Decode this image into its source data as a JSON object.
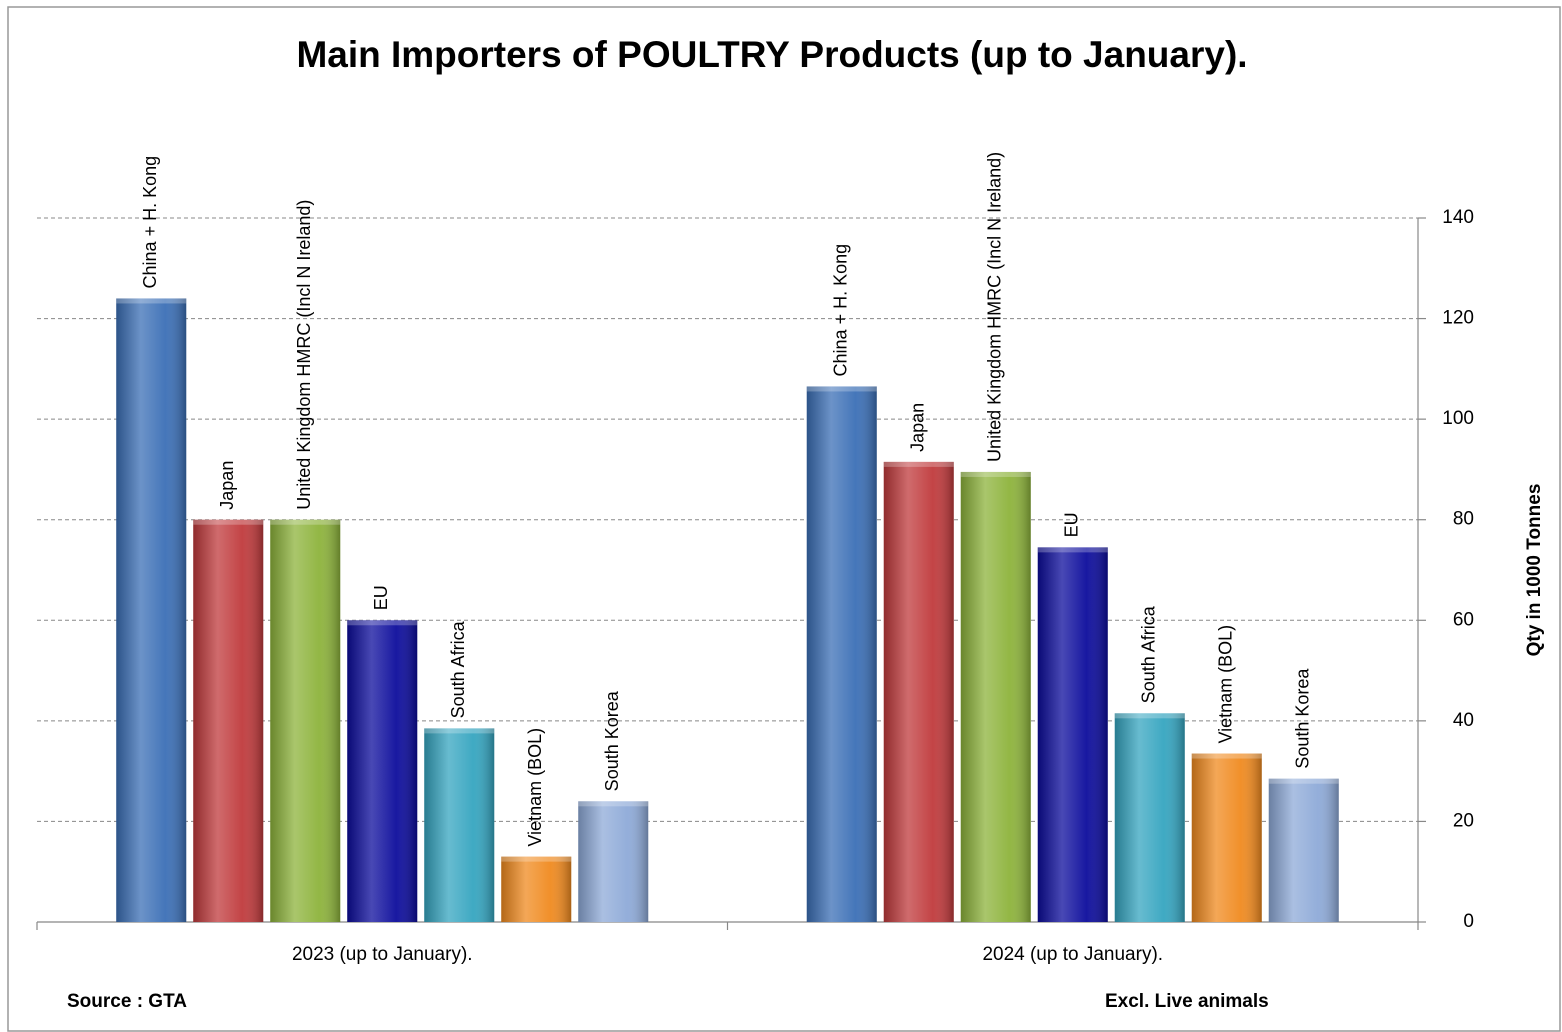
{
  "chart_data": {
    "type": "bar",
    "title": "Main Importers of POULTRY Products (up to January).",
    "categories": [
      "2023 (up to January).",
      "2024 (up to January)."
    ],
    "series": [
      {
        "name": "China + H. Kong",
        "color": "#3b6fb6",
        "values": [
          124,
          106.5
        ]
      },
      {
        "name": "Japan",
        "color": "#c03a3c",
        "values": [
          80,
          91.5
        ]
      },
      {
        "name": "United Kingdom HMRC (Incl N Ireland)",
        "color": "#8db33b",
        "values": [
          80,
          89.5
        ]
      },
      {
        "name": "EU",
        "color": "#0c0c9c",
        "values": [
          60,
          74.5
        ]
      },
      {
        "name": "South Africa",
        "color": "#35a5c0",
        "values": [
          38.5,
          41.5
        ]
      },
      {
        "name": "Vietnam (BOL)",
        "color": "#f08a1f",
        "values": [
          13,
          33.5
        ]
      },
      {
        "name": "South Korea",
        "color": "#8eaad8",
        "values": [
          24,
          28.5
        ]
      }
    ],
    "ylabel": "Qty in 1000 Tonnes",
    "ylim": [
      0,
      140
    ],
    "yticks": [
      0,
      20,
      40,
      60,
      80,
      100,
      120,
      140
    ],
    "grid": true,
    "annotations": [
      "Source : GTA",
      "Excl. Live animals"
    ]
  }
}
